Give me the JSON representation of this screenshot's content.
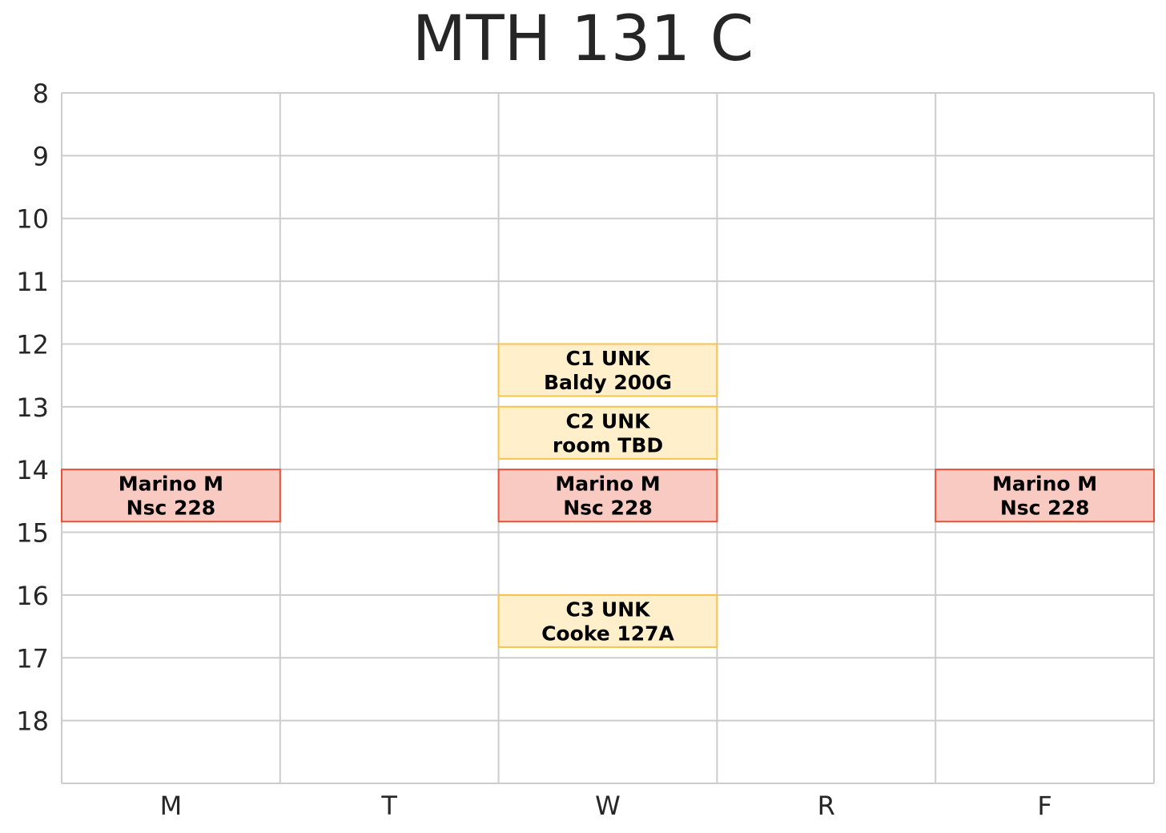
{
  "chart_data": {
    "type": "table",
    "title": "MTH 131 C",
    "xlabel": "",
    "ylabel": "",
    "days": [
      "M",
      "T",
      "W",
      "R",
      "F"
    ],
    "hours": [
      8,
      9,
      10,
      11,
      12,
      13,
      14,
      15,
      16,
      17,
      18
    ],
    "ylim": [
      8,
      19
    ],
    "grid": true,
    "colors": {
      "lecture_fill": "#f8cac1",
      "lecture_edge": "#e8503a",
      "section_fill": "#ffefcb",
      "section_edge": "#f7c34d",
      "grid": "#cccccc"
    },
    "events": [
      {
        "day": "M",
        "start": 14,
        "end": 14.83,
        "lines": [
          "Marino M",
          "Nsc 228"
        ],
        "kind": "lecture"
      },
      {
        "day": "W",
        "start": 14,
        "end": 14.83,
        "lines": [
          "Marino M",
          "Nsc 228"
        ],
        "kind": "lecture"
      },
      {
        "day": "F",
        "start": 14,
        "end": 14.83,
        "lines": [
          "Marino M",
          "Nsc 228"
        ],
        "kind": "lecture"
      },
      {
        "day": "W",
        "start": 12,
        "end": 12.83,
        "lines": [
          "C1 UNK",
          "Baldy 200G"
        ],
        "kind": "section"
      },
      {
        "day": "W",
        "start": 13,
        "end": 13.83,
        "lines": [
          "C2 UNK",
          "room TBD"
        ],
        "kind": "section"
      },
      {
        "day": "W",
        "start": 16,
        "end": 16.83,
        "lines": [
          "C3 UNK",
          "Cooke 127A"
        ],
        "kind": "section"
      }
    ]
  }
}
